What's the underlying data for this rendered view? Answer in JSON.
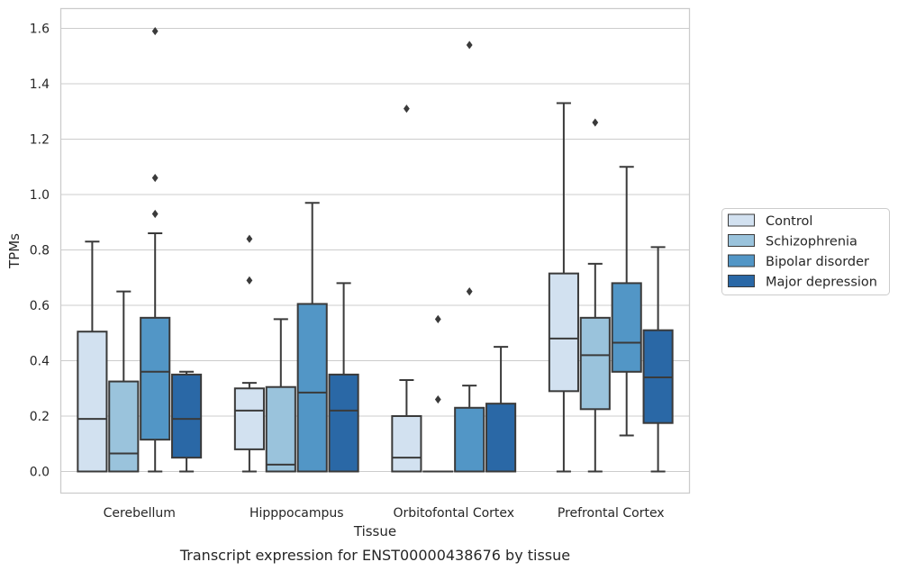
{
  "chart_data": {
    "type": "box",
    "xlabel": "Tissue",
    "ylabel": "TPMs",
    "caption": "Transcript expression for ENST00000438676 by tissue",
    "ylim": [
      -0.08,
      1.67
    ],
    "yticks": [
      0.0,
      0.2,
      0.4,
      0.6,
      0.8,
      1.0,
      1.2,
      1.4,
      1.6
    ],
    "ytick_labels": [
      "0.0",
      "0.2",
      "0.4",
      "0.6",
      "0.8",
      "1.0",
      "1.2",
      "1.4",
      "1.6"
    ],
    "grid": "horizontal",
    "legend_position": "right",
    "categories": [
      "Cerebellum",
      "Hipppocampus",
      "Orbitofontal Cortex",
      "Prefrontal Cortex"
    ],
    "series": [
      {
        "name": "Control",
        "color": "#d2e1f0",
        "boxes": [
          {
            "whislo": 0.0,
            "q1": 0.0,
            "med": 0.19,
            "q3": 0.505,
            "whishi": 0.83,
            "fliers": []
          },
          {
            "whislo": 0.0,
            "q1": 0.08,
            "med": 0.22,
            "q3": 0.3,
            "whishi": 0.32,
            "fliers": [
              0.69,
              0.84
            ]
          },
          {
            "whislo": 0.0,
            "q1": 0.0,
            "med": 0.05,
            "q3": 0.2,
            "whishi": 0.33,
            "fliers": [
              1.31
            ]
          },
          {
            "whislo": 0.0,
            "q1": 0.29,
            "med": 0.48,
            "q3": 0.715,
            "whishi": 1.33,
            "fliers": []
          }
        ]
      },
      {
        "name": "Schizophrenia",
        "color": "#9ac3dc",
        "boxes": [
          {
            "whislo": 0.0,
            "q1": 0.0,
            "med": 0.065,
            "q3": 0.325,
            "whishi": 0.65,
            "fliers": []
          },
          {
            "whislo": 0.0,
            "q1": 0.0,
            "med": 0.025,
            "q3": 0.305,
            "whishi": 0.55,
            "fliers": []
          },
          {
            "whislo": 0.0,
            "q1": 0.0,
            "med": 0.0,
            "q3": 0.0,
            "whishi": 0.0,
            "fliers": [
              0.26,
              0.55
            ]
          },
          {
            "whislo": 0.0,
            "q1": 0.225,
            "med": 0.42,
            "q3": 0.555,
            "whishi": 0.75,
            "fliers": [
              1.26
            ]
          }
        ]
      },
      {
        "name": "Bipolar disorder",
        "color": "#5296c6",
        "boxes": [
          {
            "whislo": 0.0,
            "q1": 0.115,
            "med": 0.36,
            "q3": 0.555,
            "whishi": 0.86,
            "fliers": [
              0.93,
              1.06,
              1.59
            ]
          },
          {
            "whislo": 0.0,
            "q1": 0.0,
            "med": 0.285,
            "q3": 0.605,
            "whishi": 0.97,
            "fliers": []
          },
          {
            "whislo": 0.0,
            "q1": 0.0,
            "med": 0.0,
            "q3": 0.23,
            "whishi": 0.31,
            "fliers": [
              0.65,
              1.54
            ]
          },
          {
            "whislo": 0.13,
            "q1": 0.36,
            "med": 0.465,
            "q3": 0.68,
            "whishi": 1.1,
            "fliers": []
          }
        ]
      },
      {
        "name": "Major depression",
        "color": "#2a68a6",
        "boxes": [
          {
            "whislo": 0.0,
            "q1": 0.05,
            "med": 0.19,
            "q3": 0.35,
            "whishi": 0.36,
            "fliers": []
          },
          {
            "whislo": 0.0,
            "q1": 0.0,
            "med": 0.22,
            "q3": 0.35,
            "whishi": 0.68,
            "fliers": []
          },
          {
            "whislo": 0.0,
            "q1": 0.0,
            "med": 0.0,
            "q3": 0.245,
            "whishi": 0.45,
            "fliers": []
          },
          {
            "whislo": 0.0,
            "q1": 0.175,
            "med": 0.34,
            "q3": 0.51,
            "whishi": 0.81,
            "fliers": []
          }
        ]
      }
    ]
  }
}
